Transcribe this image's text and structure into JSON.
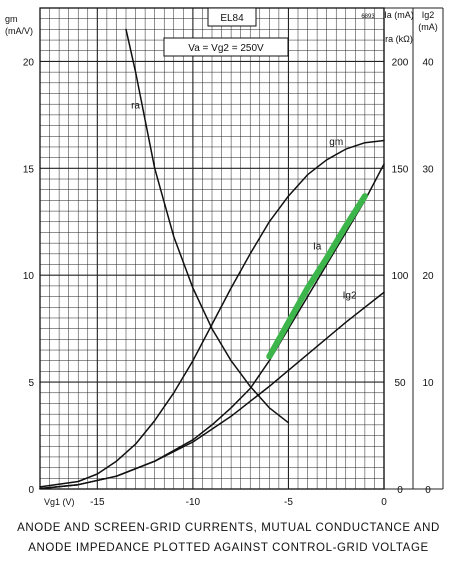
{
  "chart_data": {
    "type": "line",
    "tube": "EL84",
    "condition": "Va = Vg2 = 250V",
    "code": "6893",
    "x_axis": {
      "label": "Vg1 (V)",
      "ticks": [
        -15,
        -10,
        -5,
        0
      ],
      "range": [
        -18,
        0
      ]
    },
    "y_axes": [
      {
        "label": "gm",
        "unit": "(mA/V)",
        "ticks": [
          0,
          5,
          10,
          15,
          20
        ],
        "range": [
          0,
          22.5
        ]
      },
      {
        "label": "Ia (mA)",
        "sublabel": "ra (kΩ)",
        "ticks": [
          0,
          50,
          100,
          150,
          200
        ],
        "range": [
          0,
          225
        ]
      },
      {
        "label": "Ig2",
        "unit": "(mA)",
        "ticks": [
          0,
          10,
          20,
          30,
          40
        ],
        "range": [
          0,
          45
        ]
      }
    ],
    "series": [
      {
        "name": "gm",
        "axis": "gm",
        "color": "#111111",
        "points": [
          [
            -18,
            0.1
          ],
          [
            -16,
            0.35
          ],
          [
            -15,
            0.7
          ],
          [
            -14,
            1.3
          ],
          [
            -13,
            2.1
          ],
          [
            -12,
            3.2
          ],
          [
            -11,
            4.5
          ],
          [
            -10,
            6.0
          ],
          [
            -9,
            7.7
          ],
          [
            -8,
            9.4
          ],
          [
            -7,
            11.0
          ],
          [
            -6,
            12.5
          ],
          [
            -5,
            13.7
          ],
          [
            -4,
            14.7
          ],
          [
            -3,
            15.4
          ],
          [
            -2,
            15.9
          ],
          [
            -1,
            16.2
          ],
          [
            0,
            16.3
          ]
        ]
      },
      {
        "name": "Ia",
        "axis": "Ia",
        "color": "#111111",
        "points": [
          [
            -18,
            0.2
          ],
          [
            -16,
            2
          ],
          [
            -14,
            6
          ],
          [
            -12,
            13
          ],
          [
            -10,
            23
          ],
          [
            -9,
            30
          ],
          [
            -8,
            38
          ],
          [
            -7,
            47
          ],
          [
            -6,
            60
          ],
          [
            -5,
            75
          ],
          [
            -4,
            90
          ],
          [
            -3,
            105
          ],
          [
            -2,
            120
          ],
          [
            -1,
            135
          ],
          [
            0,
            152
          ]
        ]
      },
      {
        "name": "Ig2",
        "axis": "Ig2",
        "color": "#111111",
        "points": [
          [
            -18,
            0.05
          ],
          [
            -16,
            0.4
          ],
          [
            -14,
            1.2
          ],
          [
            -12,
            2.6
          ],
          [
            -10,
            4.4
          ],
          [
            -8,
            6.8
          ],
          [
            -6,
            9.6
          ],
          [
            -4,
            12.6
          ],
          [
            -2,
            15.6
          ],
          [
            0,
            18.4
          ]
        ]
      },
      {
        "name": "ra",
        "axis": "ra",
        "color": "#111111",
        "points": [
          [
            -13.5,
            215
          ],
          [
            -13,
            195
          ],
          [
            -12,
            150
          ],
          [
            -11,
            118
          ],
          [
            -10,
            94
          ],
          [
            -9,
            75
          ],
          [
            -8,
            60
          ],
          [
            -7,
            48
          ],
          [
            -6,
            38
          ],
          [
            -5,
            31
          ]
        ]
      },
      {
        "name": "",
        "axis": "Ia",
        "color": "#3cb64a",
        "highlight": true,
        "points": [
          [
            -6,
            62
          ],
          [
            -5,
            78
          ],
          [
            -4,
            94
          ],
          [
            -3,
            108
          ],
          [
            -2,
            123
          ],
          [
            -1,
            137
          ]
        ]
      }
    ],
    "curve_labels": [
      {
        "text": "gm",
        "x": -2.5,
        "y_gm": 16.1
      },
      {
        "text": "Ia",
        "x": -3.5,
        "y_gm": 11.2
      },
      {
        "text": "Ig2",
        "x": -1.8,
        "y_gm": 8.9
      },
      {
        "text": "ra",
        "x": -13.0,
        "y_gm": 17.8
      }
    ],
    "caption_line1": "ANODE AND SCREEN-GRID CURRENTS, MUTUAL CONDUCTANCE AND",
    "caption_line2": "ANODE IMPEDANCE PLOTTED AGAINST CONTROL-GRID VOLTAGE",
    "grid": true
  }
}
